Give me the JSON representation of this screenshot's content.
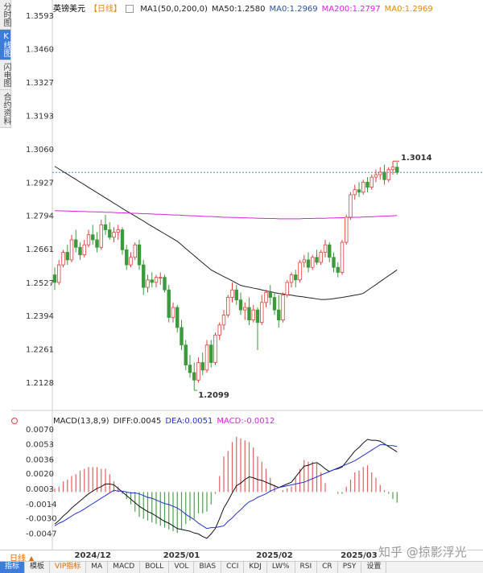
{
  "sidebar": [
    "分时图",
    "K线图",
    "闪电图",
    "合约资料"
  ],
  "period_button": "日线",
  "toolbar": [
    "指标",
    "模板",
    "VIP指标",
    "MA",
    "MACD",
    "BOLL",
    "VOL",
    "BIAS",
    "CCI",
    "KDJ",
    "LW%",
    "RSI",
    "CR",
    "PSY",
    "设置"
  ],
  "watermark": "知乎 @掠影浮光",
  "chart_data": [
    {
      "type": "candlestick",
      "title": "英镑美元",
      "period": "【日线】",
      "legend": [
        {
          "text": "MA1(50,0,200,0)",
          "color": "#222222"
        },
        {
          "text": "MA50:1.2580",
          "color": "#222222"
        },
        {
          "text": "MA0:1.2969",
          "color": "#2a4fa8"
        },
        {
          "text": "MA200:1.2797",
          "color": "#e020e0"
        },
        {
          "text": "MA0:1.2969",
          "color": "#e08a00"
        }
      ],
      "up_color": "#e0403a",
      "down_color": "#3c9a3c",
      "last_price_color": "#3a8fb7",
      "max_label_color": "#e0403a",
      "min_label_color": "#3c9a3c",
      "ylim": [
        1.2035,
        1.3625
      ],
      "yticks": [
        1.3593,
        {
          "value": 1.346,
          "label": "1.3460"
        },
        1.3327,
        1.3193,
        {
          "value": 1.306,
          "label": "1.3060"
        },
        1.2927,
        1.2794,
        1.2661,
        1.2527,
        1.2394,
        1.2261,
        1.2128
      ],
      "categories": [
        null,
        null,
        null,
        null,
        null,
        null,
        null,
        null,
        null,
        "2024/12",
        null,
        null,
        null,
        null,
        null,
        null,
        null,
        null,
        null,
        null,
        null,
        null,
        null,
        null,
        null,
        null,
        null,
        null,
        null,
        null,
        "2025/01",
        null,
        null,
        null,
        null,
        null,
        null,
        null,
        null,
        null,
        null,
        null,
        null,
        null,
        null,
        null,
        null,
        null,
        null,
        null,
        null,
        null,
        "2025/02",
        null,
        null,
        null,
        null,
        null,
        null,
        null,
        null,
        null,
        null,
        null,
        null,
        null,
        null,
        null,
        null,
        null,
        null,
        null,
        "2025/03",
        null,
        null,
        null,
        null,
        null,
        null,
        null,
        null,
        null
      ],
      "candles": [
        [
          1.256,
          1.259,
          1.25,
          1.253
        ],
        [
          1.253,
          1.262,
          1.252,
          1.26
        ],
        [
          1.26,
          1.266,
          1.259,
          1.265
        ],
        [
          1.265,
          1.268,
          1.26,
          1.262
        ],
        [
          1.262,
          1.272,
          1.261,
          1.27
        ],
        [
          1.27,
          1.274,
          1.265,
          1.267
        ],
        [
          1.267,
          1.269,
          1.262,
          1.264
        ],
        [
          1.264,
          1.27,
          1.263,
          1.268
        ],
        [
          1.268,
          1.274,
          1.267,
          1.272
        ],
        [
          1.272,
          1.276,
          1.268,
          1.27
        ],
        [
          1.27,
          1.273,
          1.265,
          1.267
        ],
        [
          1.267,
          1.278,
          1.266,
          1.276
        ],
        [
          1.276,
          1.28,
          1.272,
          1.274
        ],
        [
          1.274,
          1.277,
          1.27,
          1.271
        ],
        [
          1.271,
          1.275,
          1.269,
          1.273
        ],
        [
          1.273,
          1.276,
          1.27,
          1.274
        ],
        [
          1.274,
          1.275,
          1.264,
          1.266
        ],
        [
          1.266,
          1.268,
          1.258,
          1.26
        ],
        [
          1.26,
          1.265,
          1.259,
          1.263
        ],
        [
          1.263,
          1.269,
          1.262,
          1.268
        ],
        [
          1.268,
          1.27,
          1.258,
          1.26
        ],
        [
          1.26,
          1.262,
          1.248,
          1.251
        ],
        [
          1.251,
          1.256,
          1.249,
          1.254
        ],
        [
          1.254,
          1.257,
          1.251,
          1.253
        ],
        [
          1.253,
          1.256,
          1.251,
          1.255
        ],
        [
          1.255,
          1.257,
          1.252,
          1.255
        ],
        [
          1.255,
          1.256,
          1.249,
          1.25
        ],
        [
          1.25,
          1.252,
          1.237,
          1.239
        ],
        [
          1.239,
          1.245,
          1.237,
          1.243
        ],
        [
          1.243,
          1.244,
          1.233,
          1.235
        ],
        [
          1.235,
          1.238,
          1.226,
          1.228
        ],
        [
          1.228,
          1.23,
          1.218,
          1.22
        ],
        [
          1.22,
          1.224,
          1.215,
          1.217
        ],
        [
          1.217,
          1.221,
          1.2099,
          1.214
        ],
        [
          1.214,
          1.223,
          1.213,
          1.221
        ],
        [
          1.221,
          1.225,
          1.216,
          1.218
        ],
        [
          1.218,
          1.23,
          1.217,
          1.228
        ],
        [
          1.228,
          1.23,
          1.219,
          1.221
        ],
        [
          1.221,
          1.233,
          1.22,
          1.232
        ],
        [
          1.232,
          1.237,
          1.23,
          1.236
        ],
        [
          1.236,
          1.242,
          1.234,
          1.24
        ],
        [
          1.24,
          1.248,
          1.239,
          1.247
        ],
        [
          1.247,
          1.253,
          1.245,
          1.25
        ],
        [
          1.25,
          1.252,
          1.244,
          1.246
        ],
        [
          1.246,
          1.249,
          1.24,
          1.242
        ],
        [
          1.242,
          1.245,
          1.238,
          1.243
        ],
        [
          1.243,
          1.247,
          1.236,
          1.238
        ],
        [
          1.238,
          1.244,
          1.237,
          1.242
        ],
        [
          1.242,
          1.243,
          1.226,
          1.237
        ],
        [
          1.237,
          1.248,
          1.236,
          1.245
        ],
        [
          1.245,
          1.25,
          1.243,
          1.249
        ],
        [
          1.249,
          1.252,
          1.244,
          1.247
        ],
        [
          1.247,
          1.249,
          1.24,
          1.242
        ],
        [
          1.242,
          1.248,
          1.235,
          1.238
        ],
        [
          1.238,
          1.249,
          1.237,
          1.248
        ],
        [
          1.248,
          1.254,
          1.247,
          1.253
        ],
        [
          1.253,
          1.257,
          1.251,
          1.256
        ],
        [
          1.256,
          1.258,
          1.251,
          1.254
        ],
        [
          1.254,
          1.262,
          1.253,
          1.261
        ],
        [
          1.261,
          1.264,
          1.259,
          1.262
        ],
        [
          1.262,
          1.265,
          1.257,
          1.259
        ],
        [
          1.259,
          1.264,
          1.258,
          1.263
        ],
        [
          1.263,
          1.266,
          1.26,
          1.261
        ],
        [
          1.261,
          1.266,
          1.26,
          1.265
        ],
        [
          1.265,
          1.27,
          1.263,
          1.268
        ],
        [
          1.268,
          1.269,
          1.261,
          1.263
        ],
        [
          1.263,
          1.265,
          1.257,
          1.259
        ],
        [
          1.259,
          1.261,
          1.255,
          1.257
        ],
        [
          1.257,
          1.27,
          1.256,
          1.269
        ],
        [
          1.269,
          1.28,
          1.268,
          1.279
        ],
        [
          1.279,
          1.289,
          1.278,
          1.288
        ],
        [
          1.288,
          1.292,
          1.286,
          1.29
        ],
        [
          1.29,
          1.293,
          1.287,
          1.289
        ],
        [
          1.289,
          1.294,
          1.288,
          1.293
        ],
        [
          1.293,
          1.295,
          1.289,
          1.291
        ],
        [
          1.291,
          1.296,
          1.29,
          1.295
        ],
        [
          1.295,
          1.298,
          1.293,
          1.296
        ],
        [
          1.296,
          1.299,
          1.294,
          1.297
        ],
        [
          1.297,
          1.3,
          1.292,
          1.294
        ],
        [
          1.294,
          1.299,
          1.293,
          1.298
        ],
        [
          1.298,
          1.3014,
          1.296,
          1.299
        ],
        [
          1.299,
          1.301,
          1.296,
          1.2969
        ]
      ],
      "overlays": [
        {
          "color": "#222222",
          "values": [
            1.2993,
            1.2983,
            1.2972,
            1.2962,
            1.2951,
            1.2941,
            1.293,
            1.292,
            1.2909,
            1.2899,
            1.2888,
            1.2878,
            1.2867,
            1.2857,
            1.2846,
            1.2836,
            1.2825,
            1.2815,
            1.2805,
            1.2795,
            1.2785,
            1.2775,
            1.2764,
            1.2754,
            1.2744,
            1.2734,
            1.2724,
            1.2714,
            1.2704,
            1.2694,
            1.268,
            1.2665,
            1.2651,
            1.2637,
            1.2622,
            1.2608,
            1.2594,
            1.258,
            1.2571,
            1.2562,
            1.2553,
            1.2545,
            1.2536,
            1.2527,
            1.2518,
            1.2514,
            1.2511,
            1.2507,
            1.2504,
            1.25,
            1.2496,
            1.2493,
            1.2489,
            1.2486,
            1.2484,
            1.2481,
            1.2479,
            1.2476,
            1.2474,
            1.2472,
            1.2469,
            1.2467,
            1.2464,
            1.2462,
            1.2462,
            1.2463,
            1.2465,
            1.2468,
            1.247,
            1.2473,
            1.2476,
            1.2479,
            1.2482,
            1.2486,
            1.2498,
            1.251,
            1.2521,
            1.2533,
            1.2545,
            1.2557,
            1.2568,
            1.258
          ]
        },
        {
          "color": "#e020e0",
          "values": [
            1.2816,
            1.2816,
            1.2815,
            1.2815,
            1.2814,
            1.2814,
            1.2813,
            1.2813,
            1.2812,
            1.2812,
            1.2811,
            1.2811,
            1.281,
            1.281,
            1.2809,
            1.2808,
            1.2808,
            1.2807,
            1.2806,
            1.2806,
            1.2805,
            1.2804,
            1.2804,
            1.2803,
            1.2802,
            1.2802,
            1.2801,
            1.28,
            1.2799,
            1.2799,
            1.2798,
            1.2797,
            1.2796,
            1.2796,
            1.2795,
            1.2794,
            1.2793,
            1.2793,
            1.2792,
            1.2791,
            1.279,
            1.279,
            1.2789,
            1.2789,
            1.2788,
            1.2788,
            1.2787,
            1.2787,
            1.2786,
            1.2786,
            1.2785,
            1.2785,
            1.2785,
            1.2784,
            1.2784,
            1.2784,
            1.2784,
            1.2784,
            1.2784,
            1.2785,
            1.2785,
            1.2785,
            1.2786,
            1.2786,
            1.2786,
            1.2787,
            1.2787,
            1.2788,
            1.2788,
            1.2789,
            1.2789,
            1.279,
            1.279,
            1.2791,
            1.2792,
            1.2792,
            1.2793,
            1.2794,
            1.2795,
            1.2795,
            1.2796,
            1.2797
          ]
        }
      ]
    },
    {
      "type": "macd",
      "legend": [
        {
          "text": "MACD(13,8,9)",
          "color": "#222222"
        },
        {
          "text": "DIFF:0.0045",
          "color": "#222222"
        },
        {
          "text": "DEA:0.0051",
          "color": "#2233cc"
        },
        {
          "text": "MACD:-0.0012",
          "color": "#e020e0"
        }
      ],
      "ylim": [
        -0.0062,
        0.0078
      ],
      "yticks": [
        {
          "value": 0.007,
          "label": "0.0070"
        },
        0.0053,
        0.0036,
        {
          "value": 0.002,
          "label": "0.0020"
        },
        0.0003,
        -0.0014,
        {
          "value": -0.003,
          "label": "-0.0030"
        },
        -0.0047
      ],
      "lines": [
        {
          "color": "#111111",
          "values": [
            -0.0036,
            -0.0032,
            -0.0027,
            -0.0023,
            -0.0018,
            -0.0014,
            -0.001,
            -0.0006,
            -0.0002,
            0.0001,
            0.0004,
            0.0006,
            0.0009,
            0.0009,
            0.0008,
            0.0004,
            0.0,
            -0.0004,
            -0.0008,
            -0.0012,
            -0.0016,
            -0.0019,
            -0.0022,
            -0.0024,
            -0.0027,
            -0.003,
            -0.0033,
            -0.0035,
            -0.0038,
            -0.0041,
            -0.0042,
            -0.0043,
            -0.0044,
            -0.0046,
            -0.0047,
            -0.005,
            -0.0052,
            -0.0047,
            -0.0041,
            -0.003,
            -0.0018,
            -0.001,
            -0.0001,
            0.0007,
            0.001,
            0.0014,
            0.0017,
            0.0016,
            0.0014,
            0.0013,
            0.0011,
            0.0009,
            0.0007,
            0.0005,
            0.0007,
            0.0009,
            0.0011,
            0.0017,
            0.0023,
            0.0029,
            0.003,
            0.0032,
            0.0033,
            0.003,
            0.0026,
            0.0023,
            0.0025,
            0.0026,
            0.0028,
            0.0034,
            0.004,
            0.0046,
            0.005,
            0.0055,
            0.0059,
            0.0058,
            0.0058,
            0.0057,
            0.0054,
            0.0051,
            0.0048,
            0.0045
          ]
        },
        {
          "color": "#2233cc",
          "values": [
            -0.0038,
            -0.0035,
            -0.0033,
            -0.003,
            -0.0027,
            -0.0024,
            -0.0022,
            -0.0019,
            -0.0016,
            -0.0013,
            -0.001,
            -0.0007,
            -0.0004,
            -0.0001,
            0.0002,
            0.0001,
            0.0001,
            0.0,
            -0.0001,
            -0.0001,
            -0.0002,
            -0.0004,
            -0.0006,
            -0.0007,
            -0.0009,
            -0.0011,
            -0.0013,
            -0.0014,
            -0.0016,
            -0.0018,
            -0.0021,
            -0.0025,
            -0.0028,
            -0.0031,
            -0.0035,
            -0.0038,
            -0.0041,
            -0.004,
            -0.004,
            -0.0039,
            -0.0038,
            -0.0033,
            -0.0029,
            -0.0024,
            -0.002,
            -0.0015,
            -0.0011,
            -0.0009,
            -0.0006,
            -0.0004,
            -0.0002,
            0.0001,
            0.0003,
            0.0005,
            0.0006,
            0.0007,
            0.0008,
            0.0009,
            0.001,
            0.0011,
            0.0013,
            0.0015,
            0.0017,
            0.0019,
            0.0021,
            0.0023,
            0.0025,
            0.0027,
            0.0029,
            0.0031,
            0.0033,
            0.0035,
            0.0038,
            0.0041,
            0.0044,
            0.0047,
            0.005,
            0.0053,
            0.0053,
            0.0052,
            0.0052,
            0.0051
          ]
        }
      ],
      "histogram": {
        "up_color": "#e06060",
        "down_color": "#4ea04e",
        "values": [
          0.0004,
          0.0006,
          0.0012,
          0.0014,
          0.0018,
          0.002,
          0.0024,
          0.0026,
          0.0028,
          0.0028,
          0.0028,
          0.0026,
          0.0026,
          0.002,
          0.0012,
          0.0006,
          -0.0002,
          -0.0008,
          -0.0014,
          -0.0022,
          -0.0028,
          -0.003,
          -0.0032,
          -0.0034,
          -0.0036,
          -0.0038,
          -0.004,
          -0.0042,
          -0.0044,
          -0.0046,
          -0.0042,
          -0.0036,
          -0.0032,
          -0.003,
          -0.0024,
          -0.0024,
          -0.0022,
          -0.0014,
          -0.0002,
          0.0018,
          0.004,
          0.0046,
          0.0056,
          0.0062,
          0.006,
          0.0058,
          0.0056,
          0.005,
          0.004,
          0.0034,
          0.0026,
          0.0016,
          0.0008,
          0.0,
          0.0002,
          0.0004,
          0.0006,
          0.0016,
          0.0026,
          0.0036,
          0.0034,
          0.0034,
          0.0032,
          0.0022,
          0.001,
          0.0,
          0.0,
          -0.0002,
          -0.0002,
          0.0006,
          0.0014,
          0.0022,
          0.0024,
          0.0028,
          0.003,
          0.0022,
          0.0016,
          0.0008,
          0.0002,
          -0.0002,
          -0.0008,
          -0.0012
        ]
      }
    }
  ]
}
